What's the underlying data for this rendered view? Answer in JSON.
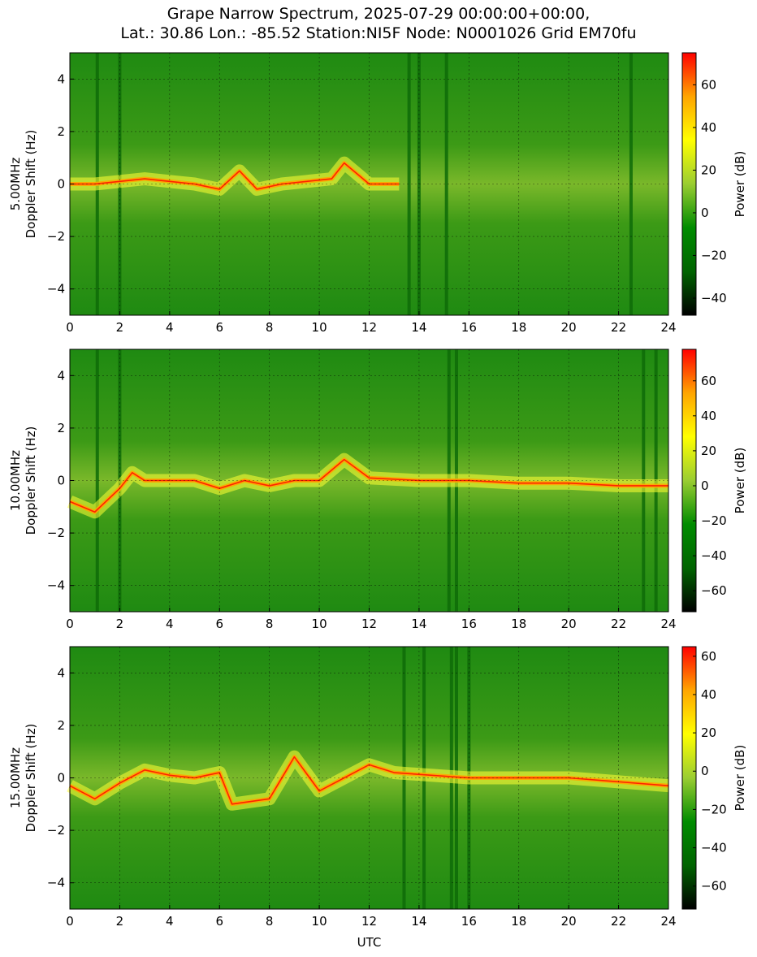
{
  "title_line1": "Grape Narrow Spectrum, 2025-07-29 00:00:00+00:00,",
  "title_line2": "Lat.: 30.86 Lon.: -85.52 Station:NI5F Node: N0001026 Grid EM70fu",
  "colors": {
    "colormap": [
      "#000000",
      "#006400",
      "#008c00",
      "#9acd32",
      "#ffff00",
      "#ffa500",
      "#ff0000"
    ],
    "background": "#ffffff"
  },
  "chart_data": [
    {
      "type": "heatmap",
      "frequency_label": "5.00MHz",
      "ylabel": "Doppler Shift (Hz)",
      "xlabel": "",
      "colorbar_label": "Power (dB)",
      "xlim": [
        0,
        24
      ],
      "ylim": [
        -5,
        5
      ],
      "x_ticks": [
        0,
        2,
        4,
        6,
        8,
        10,
        12,
        14,
        16,
        18,
        20,
        22,
        24
      ],
      "y_ticks": [
        -4,
        -2,
        0,
        2,
        4
      ],
      "colorbar_range": [
        -48,
        75
      ],
      "colorbar_ticks": [
        -40,
        -20,
        0,
        20,
        40,
        60
      ],
      "grid": true,
      "carrier_trace": [
        [
          0,
          0
        ],
        [
          1,
          0
        ],
        [
          2,
          0.1
        ],
        [
          3,
          0.2
        ],
        [
          4,
          0.1
        ],
        [
          5,
          0
        ],
        [
          6,
          -0.2
        ],
        [
          6.8,
          0.5
        ],
        [
          7.5,
          -0.2
        ],
        [
          8.5,
          0
        ],
        [
          9.5,
          0.1
        ],
        [
          10.5,
          0.2
        ],
        [
          11,
          0.8
        ],
        [
          12,
          0
        ],
        [
          13.2,
          0
        ]
      ],
      "signal_end_utc": 13.2,
      "interference_bands_utc": [
        1.1,
        2.0,
        13.6,
        14.0,
        15.1,
        22.5
      ]
    },
    {
      "type": "heatmap",
      "frequency_label": "10.00MHz",
      "ylabel": "Doppler Shift (Hz)",
      "xlabel": "",
      "colorbar_label": "Power (dB)",
      "xlim": [
        0,
        24
      ],
      "ylim": [
        -5,
        5
      ],
      "x_ticks": [
        0,
        2,
        4,
        6,
        8,
        10,
        12,
        14,
        16,
        18,
        20,
        22,
        24
      ],
      "y_ticks": [
        -4,
        -2,
        0,
        2,
        4
      ],
      "colorbar_range": [
        -72,
        78
      ],
      "colorbar_ticks": [
        -60,
        -40,
        -20,
        0,
        20,
        40,
        60
      ],
      "grid": true,
      "carrier_trace": [
        [
          0,
          -0.8
        ],
        [
          1,
          -1.2
        ],
        [
          2,
          -0.3
        ],
        [
          2.5,
          0.3
        ],
        [
          3,
          0
        ],
        [
          4,
          0
        ],
        [
          5,
          0
        ],
        [
          6,
          -0.3
        ],
        [
          7,
          0
        ],
        [
          8,
          -0.2
        ],
        [
          9,
          0
        ],
        [
          10,
          0
        ],
        [
          11,
          0.8
        ],
        [
          12,
          0.1
        ],
        [
          14,
          0
        ],
        [
          16,
          0
        ],
        [
          18,
          -0.1
        ],
        [
          20,
          -0.1
        ],
        [
          22,
          -0.2
        ],
        [
          24,
          -0.2
        ]
      ],
      "signal_end_utc": 24,
      "interference_bands_utc": [
        1.1,
        2.0,
        15.2,
        15.5,
        23.0,
        23.5
      ]
    },
    {
      "type": "heatmap",
      "frequency_label": "15.00MHz",
      "ylabel": "Doppler Shift (Hz)",
      "xlabel": "UTC",
      "colorbar_label": "Power (dB)",
      "xlim": [
        0,
        24
      ],
      "ylim": [
        -5,
        5
      ],
      "x_ticks": [
        0,
        2,
        4,
        6,
        8,
        10,
        12,
        14,
        16,
        18,
        20,
        22,
        24
      ],
      "y_ticks": [
        -4,
        -2,
        0,
        2,
        4
      ],
      "colorbar_range": [
        -72,
        65
      ],
      "colorbar_ticks": [
        -60,
        -40,
        -20,
        0,
        20,
        40,
        60
      ],
      "grid": true,
      "carrier_trace": [
        [
          0,
          -0.3
        ],
        [
          1,
          -0.8
        ],
        [
          2,
          -0.2
        ],
        [
          3,
          0.3
        ],
        [
          4,
          0.1
        ],
        [
          5,
          0
        ],
        [
          6,
          0.2
        ],
        [
          6.5,
          -1
        ],
        [
          8,
          -0.8
        ],
        [
          9,
          0.8
        ],
        [
          10,
          -0.5
        ],
        [
          12,
          0.5
        ],
        [
          13,
          0.2
        ],
        [
          16,
          0
        ],
        [
          20,
          0
        ],
        [
          24,
          -0.3
        ]
      ],
      "signal_end_utc": 24,
      "interference_bands_utc": [
        13.4,
        14.2,
        15.3,
        15.5,
        16.0
      ]
    }
  ]
}
